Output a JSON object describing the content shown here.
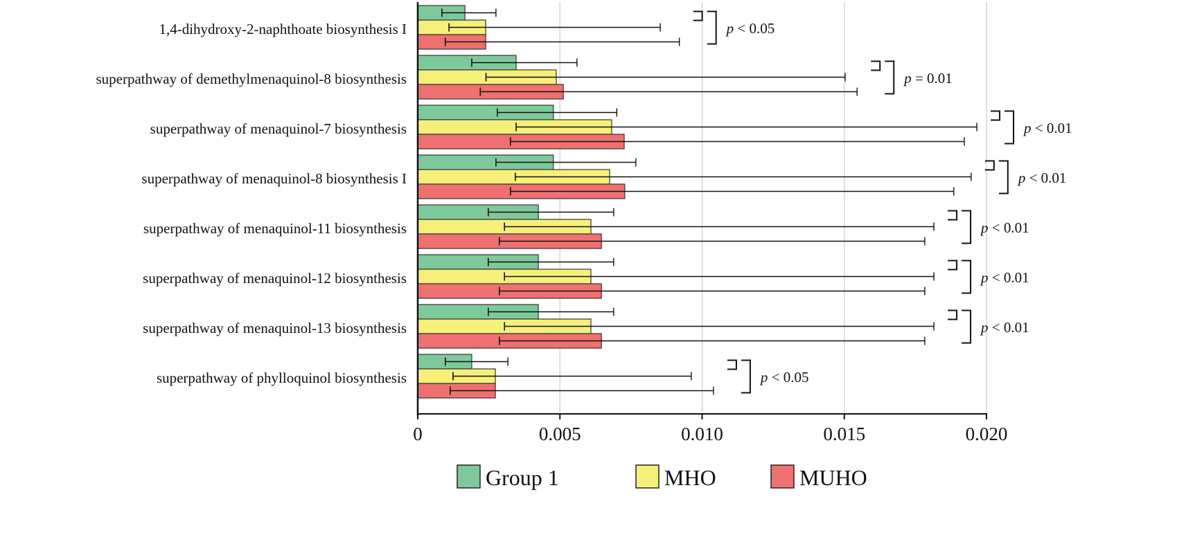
{
  "chart_data": {
    "type": "bar",
    "orientation": "horizontal",
    "title": "",
    "xlabel": "",
    "ylabel": "",
    "xlim": [
      0,
      0.02
    ],
    "xticks": [
      "0",
      "0.005",
      "0.010",
      "0.015",
      "0.020"
    ],
    "xtick_values": [
      0,
      0.005,
      0.01,
      0.015,
      0.02
    ],
    "grid": "vertical",
    "legend_position": "bottom",
    "categories": [
      "1,4-dihydroxy-2-naphthoate biosynthesis I",
      "superpathway of demethylmenaquinol-8 biosynthesis",
      "superpathway of menaquinol-7 biosynthesis",
      "superpathway of menaquinol-8 biosynthesis I",
      "superpathway of menaquinol-11 biosynthesis",
      "superpathway of menaquinol-12 biosynthesis",
      "superpathway of menaquinol-13 biosynthesis",
      "superpathway of phylloquinol biosynthesis"
    ],
    "series": [
      {
        "name": "Group 1",
        "color": "#7ec99b",
        "values": [
          0.00166,
          0.00346,
          0.00477,
          0.00477,
          0.00424,
          0.00424,
          0.00424,
          0.0019
        ],
        "error_low": [
          0.00085,
          0.0019,
          0.0028,
          0.00275,
          0.00248,
          0.00248,
          0.00248,
          0.00097
        ],
        "error_high": [
          0.00275,
          0.0056,
          0.007,
          0.00767,
          0.00689,
          0.00689,
          0.00689,
          0.00317
        ]
      },
      {
        "name": "MHO",
        "color": "#f6ef7a",
        "values": [
          0.00239,
          0.00487,
          0.00682,
          0.00675,
          0.00609,
          0.00609,
          0.00609,
          0.00273
        ],
        "error_low": [
          0.0011,
          0.0024,
          0.00346,
          0.00343,
          0.00305,
          0.00305,
          0.00305,
          0.00124
        ],
        "error_high": [
          0.00853,
          0.01503,
          0.01966,
          0.01946,
          0.01815,
          0.01815,
          0.01815,
          0.00962
        ]
      },
      {
        "name": "MUHO",
        "color": "#ef7070",
        "values": [
          0.00239,
          0.00512,
          0.00726,
          0.00728,
          0.00646,
          0.00646,
          0.00646,
          0.00273
        ],
        "error_low": [
          0.00097,
          0.0022,
          0.00326,
          0.00326,
          0.00287,
          0.00287,
          0.00287,
          0.00114
        ],
        "error_high": [
          0.0092,
          0.01545,
          0.01922,
          0.01885,
          0.01783,
          0.01783,
          0.01783,
          0.0104
        ]
      }
    ],
    "annotations": [
      {
        "p": "p",
        "rel": " < 0.05"
      },
      {
        "p": "p",
        "rel": " = 0.01"
      },
      {
        "p": "p",
        "rel": " < 0.01"
      },
      {
        "p": "p",
        "rel": " < 0.01"
      },
      {
        "p": "p",
        "rel": " < 0.01"
      },
      {
        "p": "p",
        "rel": " < 0.01"
      },
      {
        "p": "p",
        "rel": " < 0.01"
      },
      {
        "p": "p",
        "rel": " < 0.05"
      }
    ]
  }
}
